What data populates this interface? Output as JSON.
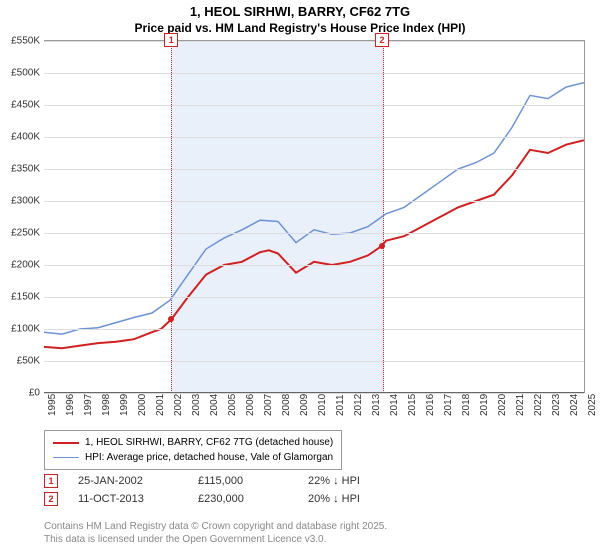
{
  "title_line1": "1, HEOL SIRHWI, BARRY, CF62 7TG",
  "title_line2": "Price paid vs. HM Land Registry's House Price Index (HPI)",
  "chart": {
    "type": "line",
    "x_start_year": 1995,
    "x_end_year": 2025,
    "y_min": 0,
    "y_max": 550,
    "y_tick_step": 50,
    "y_tick_prefix": "£",
    "y_tick_suffix": "K",
    "background_color": "#ffffff",
    "grid_color": "#dddddd",
    "axis_color": "#666666",
    "shaded_band": {
      "start_year": 2002.07,
      "end_year": 2013.78,
      "fill": "#eaf0fa",
      "border": "#d02020"
    },
    "markers": [
      {
        "label": "1",
        "year": 2002.07
      },
      {
        "label": "2",
        "year": 2013.78
      }
    ],
    "series": [
      {
        "name": "price_paid",
        "label": "1, HEOL SIRHWI, BARRY, CF62 7TG (detached house)",
        "color": "#d02020",
        "line_width": 2,
        "points": [
          [
            1995,
            72
          ],
          [
            1996,
            70
          ],
          [
            1997,
            74
          ],
          [
            1998,
            78
          ],
          [
            1999,
            80
          ],
          [
            2000,
            84
          ],
          [
            2001,
            95
          ],
          [
            2001.5,
            100
          ],
          [
            2002.07,
            115
          ],
          [
            2003,
            150
          ],
          [
            2004,
            185
          ],
          [
            2005,
            200
          ],
          [
            2006,
            205
          ],
          [
            2007,
            220
          ],
          [
            2007.5,
            223
          ],
          [
            2008,
            218
          ],
          [
            2009,
            188
          ],
          [
            2010,
            205
          ],
          [
            2011,
            200
          ],
          [
            2012,
            205
          ],
          [
            2013,
            215
          ],
          [
            2013.78,
            230
          ],
          [
            2014,
            238
          ],
          [
            2015,
            245
          ],
          [
            2016,
            260
          ],
          [
            2017,
            275
          ],
          [
            2018,
            290
          ],
          [
            2019,
            300
          ],
          [
            2020,
            310
          ],
          [
            2021,
            340
          ],
          [
            2022,
            380
          ],
          [
            2023,
            375
          ],
          [
            2024,
            388
          ],
          [
            2025,
            395
          ]
        ]
      },
      {
        "name": "hpi",
        "label": "HPI: Average price, detached house, Vale of Glamorgan",
        "color": "#6b93d6",
        "line_width": 1.5,
        "points": [
          [
            1995,
            95
          ],
          [
            1996,
            92
          ],
          [
            1997,
            100
          ],
          [
            1998,
            102
          ],
          [
            1999,
            110
          ],
          [
            2000,
            118
          ],
          [
            2001,
            125
          ],
          [
            2002,
            145
          ],
          [
            2003,
            185
          ],
          [
            2004,
            225
          ],
          [
            2005,
            242
          ],
          [
            2006,
            255
          ],
          [
            2007,
            270
          ],
          [
            2008,
            268
          ],
          [
            2009,
            235
          ],
          [
            2010,
            255
          ],
          [
            2011,
            248
          ],
          [
            2012,
            250
          ],
          [
            2013,
            260
          ],
          [
            2014,
            280
          ],
          [
            2015,
            290
          ],
          [
            2016,
            310
          ],
          [
            2017,
            330
          ],
          [
            2018,
            350
          ],
          [
            2019,
            360
          ],
          [
            2020,
            375
          ],
          [
            2021,
            415
          ],
          [
            2022,
            465
          ],
          [
            2023,
            460
          ],
          [
            2024,
            478
          ],
          [
            2025,
            485
          ]
        ]
      }
    ],
    "sale_points": [
      {
        "year": 2002.07,
        "value": 115,
        "color": "#d02020"
      },
      {
        "year": 2013.78,
        "value": 230,
        "color": "#d02020"
      }
    ]
  },
  "legend": {
    "border_color": "#999999",
    "items": [
      {
        "color": "#d02020",
        "width": 2,
        "label": "1, HEOL SIRHWI, BARRY, CF62 7TG (detached house)"
      },
      {
        "color": "#6b93d6",
        "width": 1.5,
        "label": "HPI: Average price, detached house, Vale of Glamorgan"
      }
    ]
  },
  "events": [
    {
      "num": "1",
      "date": "25-JAN-2002",
      "price": "£115,000",
      "diff": "22% ↓ HPI"
    },
    {
      "num": "2",
      "date": "11-OCT-2013",
      "price": "£230,000",
      "diff": "20% ↓ HPI"
    }
  ],
  "footer_line1": "Contains HM Land Registry data © Crown copyright and database right 2025.",
  "footer_line2": "This data is licensed under the Open Government Licence v3.0."
}
